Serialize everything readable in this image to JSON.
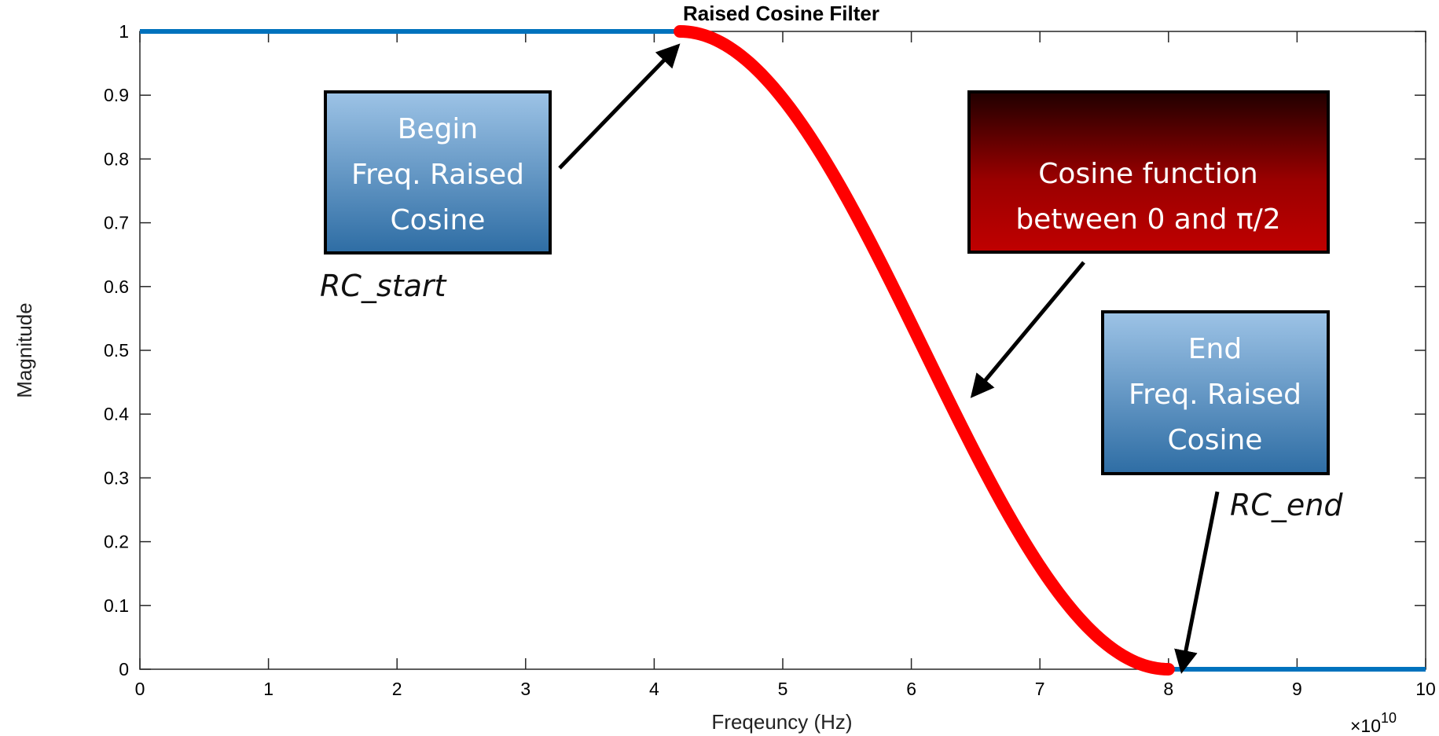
{
  "chart_data": {
    "type": "line",
    "title": "Raised Cosine Filter",
    "xlabel": "Freqeuncy (Hz)",
    "ylabel": "Magnitude",
    "x_multiplier_label": "×10",
    "x_multiplier_exponent": "10",
    "xlim": [
      0,
      10
    ],
    "ylim": [
      0,
      1
    ],
    "xticks": [
      "0",
      "1",
      "2",
      "3",
      "4",
      "5",
      "6",
      "7",
      "8",
      "9",
      "10"
    ],
    "yticks": [
      "0",
      "0.1",
      "0.2",
      "0.3",
      "0.4",
      "0.5",
      "0.6",
      "0.7",
      "0.8",
      "0.9",
      "1"
    ],
    "grid": false,
    "series": [
      {
        "color": "#0072BD",
        "x": [
          0,
          4.2
        ],
        "y": [
          1,
          1
        ]
      },
      {
        "color": "#FF0000",
        "function": "raised-cosine",
        "x_start": 4.2,
        "x_end": 8.0,
        "y_start": 1,
        "y_end": 0
      },
      {
        "color": "#0072BD",
        "x": [
          8.0,
          10
        ],
        "y": [
          0,
          0
        ]
      }
    ],
    "annotations": {
      "begin_box": [
        "Begin",
        "Freq. Raised",
        "Cosine"
      ],
      "begin_label": "RC_start",
      "cosine_box": [
        "Cosine function",
        "between 0 and π/2"
      ],
      "end_box": [
        "End",
        "Freq. Raised",
        "Cosine"
      ],
      "end_label": "RC_end"
    }
  },
  "colors": {
    "blue_line": "#0072BD",
    "red_curve": "#FF0000",
    "blue_box_top": "#9DC3E6",
    "blue_box_bottom": "#2E6DA4",
    "red_box_top": "#200000",
    "red_box_bottom": "#C00000"
  }
}
